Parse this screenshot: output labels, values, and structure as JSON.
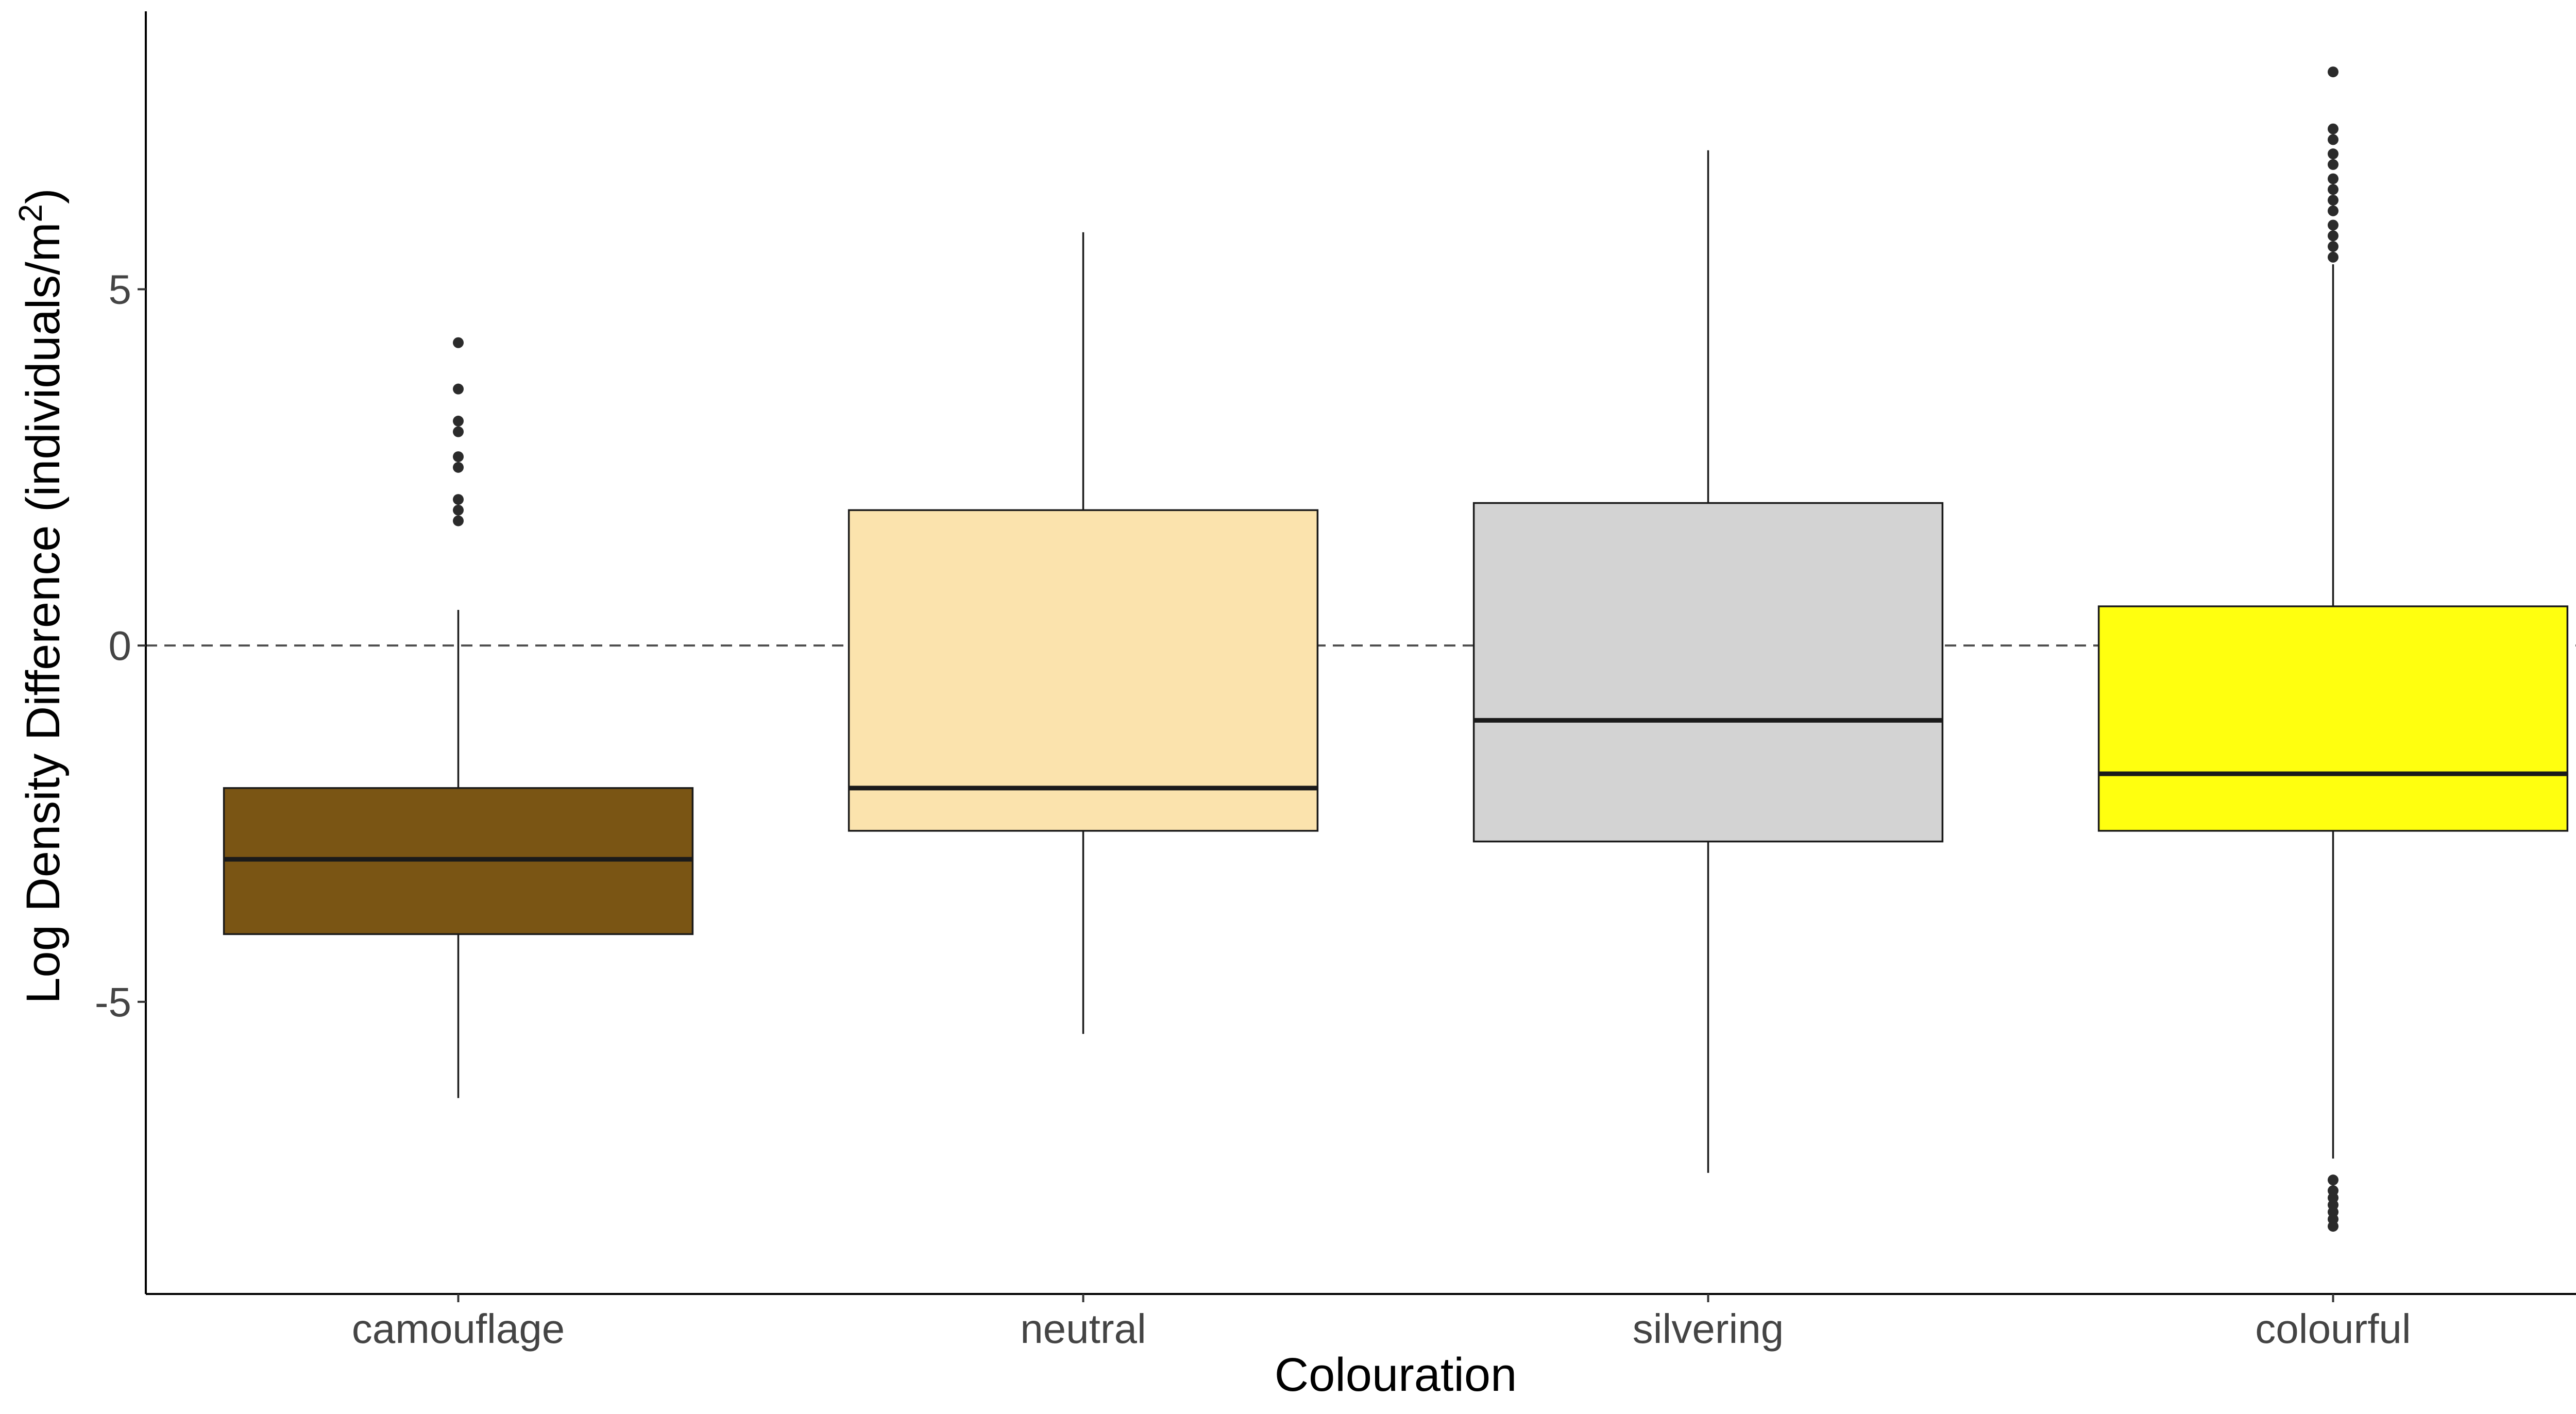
{
  "chart_data": {
    "type": "box",
    "xlabel": "Colouration",
    "ylabel_text": "Log Density Difference (individuals/m",
    "ylabel_sup": "2",
    "ylabel_close": ")",
    "ylim": [
      -9.1,
      8.9
    ],
    "yticks": [
      5,
      0,
      -5
    ],
    "ytick_labels": [
      "5",
      "0",
      "-5"
    ],
    "reference_line": 0,
    "grid": false,
    "categories": [
      "camouflage",
      "neutral",
      "silvering",
      "colourful"
    ],
    "boxes": [
      {
        "category": "camouflage",
        "color": "#7a5514",
        "whisker_low": -6.35,
        "q1": -4.05,
        "median": -3.0,
        "q3": -2.0,
        "whisker_high": 0.5,
        "outliers": [
          4.25,
          3.6,
          3.15,
          3.0,
          2.65,
          2.5,
          2.05,
          1.9,
          1.75
        ]
      },
      {
        "category": "neutral",
        "color": "#fbe3ad",
        "whisker_low": -5.45,
        "q1": -2.6,
        "median": -2.0,
        "q3": 1.9,
        "whisker_high": 5.8,
        "outliers": []
      },
      {
        "category": "silvering",
        "color": "#d3d3d3",
        "whisker_low": -7.4,
        "q1": -2.75,
        "median": -1.05,
        "q3": 2.0,
        "whisker_high": 6.95,
        "outliers": []
      },
      {
        "category": "colourful",
        "color": "#ffff0f",
        "whisker_low": -7.2,
        "q1": -2.6,
        "median": -1.8,
        "q3": 0.55,
        "whisker_high": 5.35,
        "outliers": [
          8.05,
          7.25,
          7.1,
          6.9,
          6.75,
          6.55,
          6.4,
          6.25,
          6.1,
          5.9,
          5.75,
          5.6,
          5.45,
          -7.5,
          -7.65,
          -7.75,
          -7.85,
          -7.95,
          -8.05,
          -8.15
        ]
      }
    ]
  }
}
